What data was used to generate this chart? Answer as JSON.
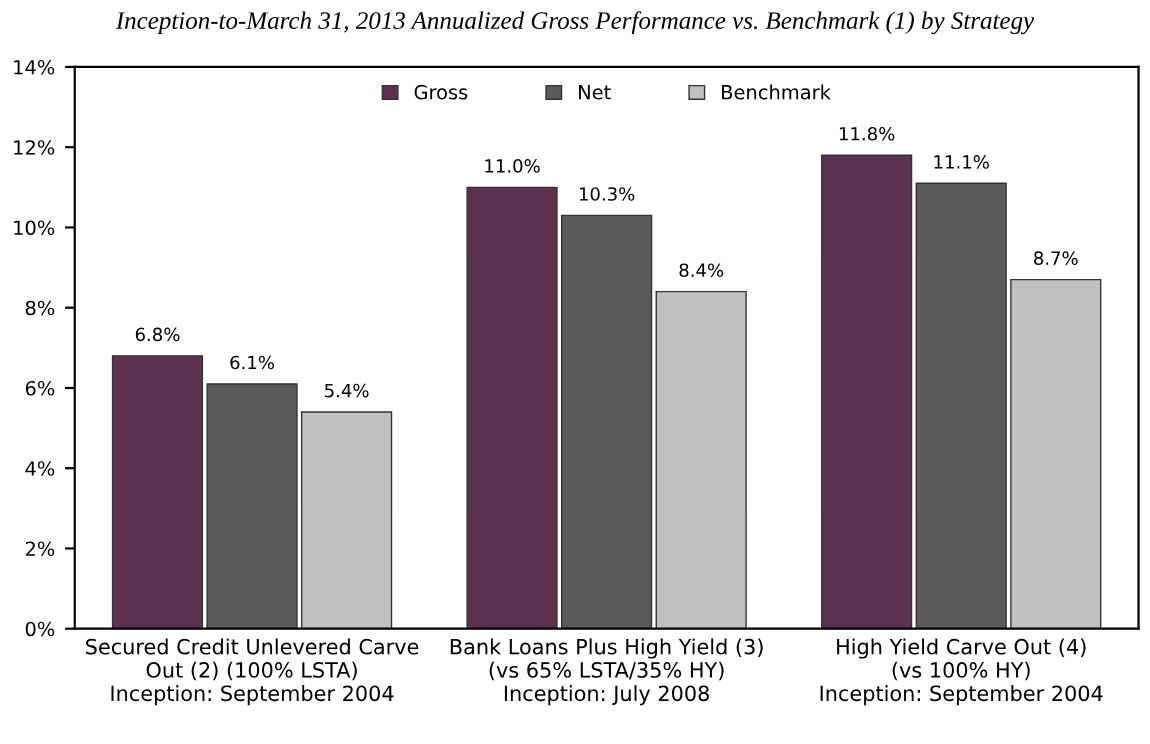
{
  "chart_data": {
    "type": "bar",
    "title": "Inception-to-March 31, 2013 Annualized Gross Performance vs. Benchmark (1) by Strategy",
    "categories": [
      "Secured Credit Unlevered Carve\nOut (2) (100% LSTA)\nInception: September 2004",
      "Bank Loans Plus High Yield (3)\n(vs 65% LSTA/35% HY)\nInception: July 2008",
      "High Yield Carve Out (4)\n(vs 100% HY)\nInception: September 2004"
    ],
    "series": [
      {
        "name": "Gross",
        "color": "#5c3250",
        "values": [
          6.8,
          11.0,
          11.8
        ],
        "value_labels": [
          "6.8%",
          "11.0%",
          "11.8%"
        ]
      },
      {
        "name": "Net",
        "color": "#5a5a5a",
        "values": [
          6.1,
          10.3,
          11.1
        ],
        "value_labels": [
          "6.1%",
          "10.3%",
          "11.1%"
        ]
      },
      {
        "name": "Benchmark",
        "color": "#c0c0c0",
        "values": [
          5.4,
          8.4,
          8.7
        ],
        "value_labels": [
          "5.4%",
          "8.4%",
          "8.7%"
        ]
      }
    ],
    "ylim": [
      0,
      14
    ],
    "yticks": [
      {
        "value": 0,
        "label": "0%"
      },
      {
        "value": 2,
        "label": "2%"
      },
      {
        "value": 4,
        "label": "4%"
      },
      {
        "value": 6,
        "label": "6%"
      },
      {
        "value": 8,
        "label": "8%"
      },
      {
        "value": 10,
        "label": "10%"
      },
      {
        "value": 12,
        "label": "12%"
      },
      {
        "value": 14,
        "label": "14%"
      }
    ],
    "grid": false,
    "legend": "top"
  }
}
